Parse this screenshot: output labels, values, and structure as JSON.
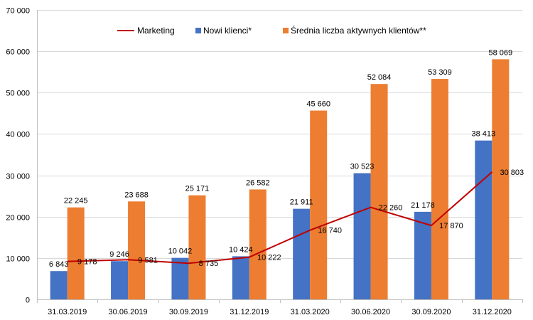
{
  "chart_data": {
    "type": "bar",
    "categories": [
      "31.03.2019",
      "30.06.2019",
      "30.09.2019",
      "31.12.2019",
      "31.03.2020",
      "30.06.2020",
      "30.09.2020",
      "31.12.2020"
    ],
    "series": [
      {
        "name": "Marketing",
        "kind": "line",
        "color": "#c00000",
        "values": [
          9178,
          9581,
          8735,
          10222,
          16740,
          22260,
          17870,
          30803
        ],
        "labels": [
          "9 178",
          "9 581",
          "8 735",
          "10 222",
          "16 740",
          "22 260",
          "17 870",
          "30 803"
        ]
      },
      {
        "name": "Nowi klienci*",
        "kind": "bar",
        "color": "#4472c4",
        "values": [
          6843,
          9246,
          10042,
          10424,
          21911,
          30523,
          21178,
          38413
        ],
        "labels": [
          "6 843",
          "9 246",
          "10 042",
          "10 424",
          "21 911",
          "30 523",
          "21 178",
          "38 413"
        ]
      },
      {
        "name": "Średnia liczba aktywnych klientów**",
        "kind": "bar",
        "color": "#ed7d31",
        "values": [
          22245,
          23688,
          25171,
          26582,
          45660,
          52084,
          53309,
          58069
        ],
        "labels": [
          "22 245",
          "23 688",
          "25 171",
          "26 582",
          "45 660",
          "52 084",
          "53 309",
          "58 069"
        ]
      }
    ],
    "ylim": [
      0,
      70000
    ],
    "yticks": [
      0,
      10000,
      20000,
      30000,
      40000,
      50000,
      60000,
      70000
    ],
    "ytick_labels": [
      "0",
      "10 000",
      "20 000",
      "30 000",
      "40 000",
      "50 000",
      "60 000",
      "70 000"
    ],
    "grid": true,
    "legend": "top-center",
    "title": "",
    "xlabel": "",
    "ylabel": ""
  }
}
